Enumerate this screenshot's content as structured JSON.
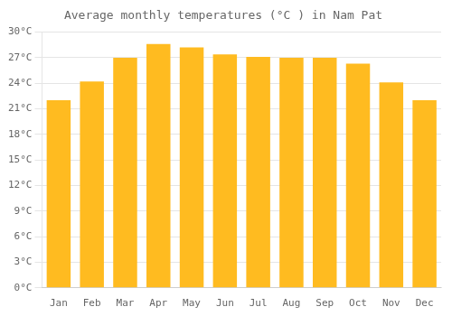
{
  "chart_data": {
    "type": "bar",
    "title": "Average monthly temperatures (°C ) in Nam Pat",
    "categories": [
      "Jan",
      "Feb",
      "Mar",
      "Apr",
      "May",
      "Jun",
      "Jul",
      "Aug",
      "Sep",
      "Oct",
      "Nov",
      "Dec"
    ],
    "values": [
      22.0,
      24.2,
      27.0,
      28.6,
      28.2,
      27.4,
      27.1,
      27.0,
      27.0,
      26.3,
      24.1,
      22.0
    ],
    "color": "#FFBB20",
    "ylim": [
      0,
      30
    ],
    "yticks": [
      {
        "value": 0,
        "label": "0°C"
      },
      {
        "value": 3,
        "label": "3°C"
      },
      {
        "value": 6,
        "label": "6°C"
      },
      {
        "value": 9,
        "label": "9°C"
      },
      {
        "value": 12,
        "label": "12°C"
      },
      {
        "value": 15,
        "label": "15°C"
      },
      {
        "value": 18,
        "label": "18°C"
      },
      {
        "value": 21,
        "label": "21°C"
      },
      {
        "value": 24,
        "label": "24°C"
      },
      {
        "value": 27,
        "label": "27°C"
      },
      {
        "value": 30,
        "label": "30°C"
      }
    ],
    "grid": true
  }
}
